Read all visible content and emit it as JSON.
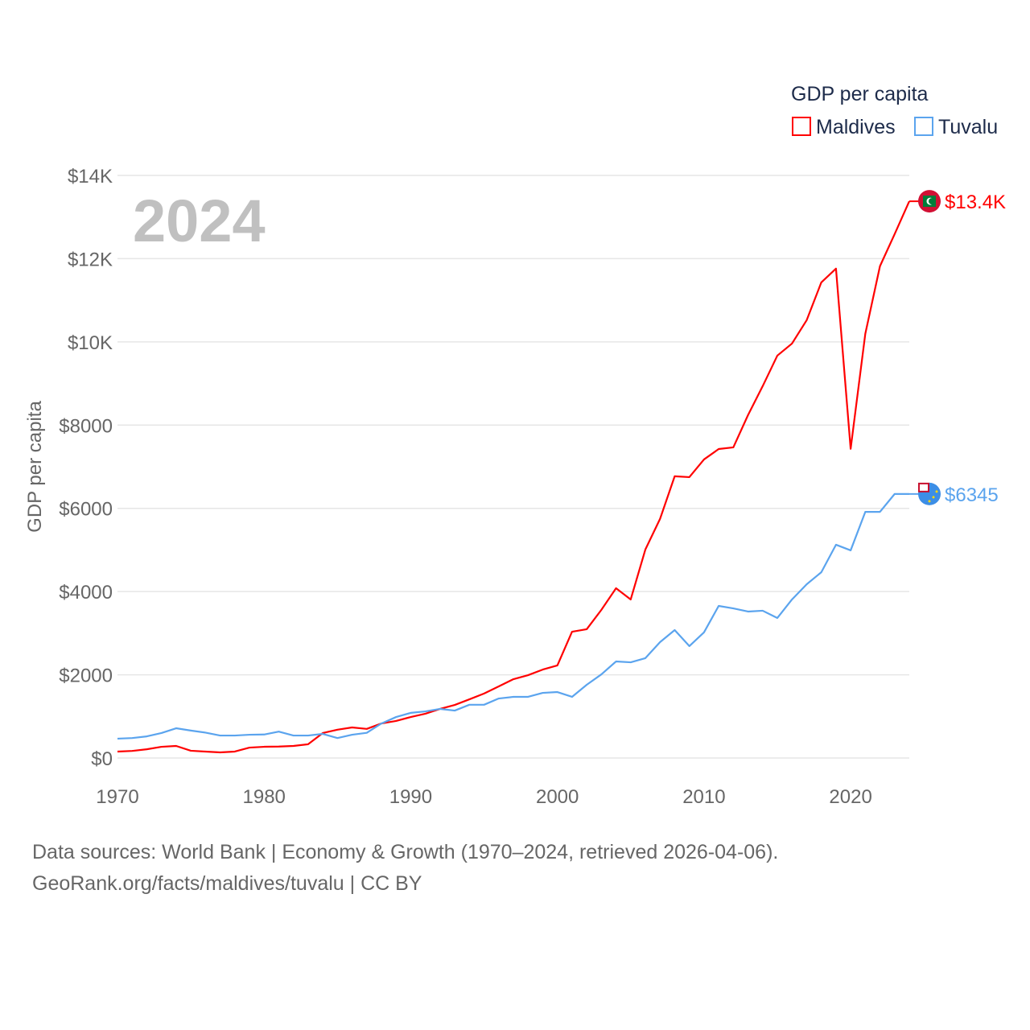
{
  "chart_data": {
    "type": "line",
    "title": "GDP per capita",
    "year_label": "2024",
    "xlabel": "",
    "ylabel": "GDP per capita",
    "xlim": [
      1970,
      2024
    ],
    "ylim": [
      0,
      14000
    ],
    "x_ticks": [
      1970,
      1980,
      1990,
      2000,
      2010,
      2020
    ],
    "x_tick_labels": [
      "1970",
      "1980",
      "1990",
      "2000",
      "2010",
      "2020"
    ],
    "y_ticks": [
      0,
      2000,
      4000,
      6000,
      8000,
      10000,
      12000,
      14000
    ],
    "y_tick_labels": [
      "$0",
      "$2000",
      "$4000",
      "$6000",
      "$8000",
      "$10K",
      "$12K",
      "$14K"
    ],
    "grid": true,
    "legend_position": "top-right",
    "x": [
      1970,
      1971,
      1972,
      1973,
      1974,
      1975,
      1976,
      1977,
      1978,
      1979,
      1980,
      1981,
      1982,
      1983,
      1984,
      1985,
      1986,
      1987,
      1988,
      1989,
      1990,
      1991,
      1992,
      1993,
      1994,
      1995,
      1996,
      1997,
      1998,
      1999,
      2000,
      2001,
      2002,
      2003,
      2004,
      2005,
      2006,
      2007,
      2008,
      2009,
      2010,
      2011,
      2012,
      2013,
      2014,
      2015,
      2016,
      2017,
      2018,
      2019,
      2020,
      2021,
      2022,
      2023,
      2024
    ],
    "series": [
      {
        "name": "Maldives",
        "color": "#ff0000",
        "end_label": "$13.4K",
        "values": [
          155,
          170,
          210,
          270,
          290,
          175,
          155,
          135,
          155,
          250,
          270,
          275,
          290,
          330,
          600,
          680,
          735,
          700,
          830,
          890,
          985,
          1065,
          1180,
          1275,
          1410,
          1550,
          1720,
          1895,
          1990,
          2125,
          2225,
          3035,
          3095,
          3560,
          4080,
          3810,
          5010,
          5745,
          6770,
          6750,
          7175,
          7425,
          7465,
          8240,
          8935,
          9670,
          9960,
          10520,
          11430,
          11760,
          7430,
          10195,
          11820,
          12590,
          13380
        ]
      },
      {
        "name": "Tuvalu",
        "color": "#5ba4ee",
        "end_label": "$6345",
        "values": [
          465,
          480,
          520,
          600,
          715,
          660,
          610,
          540,
          540,
          560,
          565,
          635,
          540,
          540,
          580,
          480,
          560,
          605,
          830,
          985,
          1085,
          1120,
          1180,
          1140,
          1280,
          1280,
          1430,
          1470,
          1470,
          1565,
          1585,
          1470,
          1760,
          2010,
          2320,
          2300,
          2400,
          2785,
          3075,
          2690,
          3020,
          3655,
          3595,
          3520,
          3540,
          3365,
          3810,
          4175,
          4465,
          5125,
          4990,
          5915,
          5915,
          6345,
          6345
        ]
      }
    ]
  },
  "footer": {
    "line1": "Data sources: World Bank | Economy & Growth (1970–2024, retrieved 2026-04-06).",
    "line2": "GeoRank.org/facts/maldives/tuvalu | CC BY"
  }
}
